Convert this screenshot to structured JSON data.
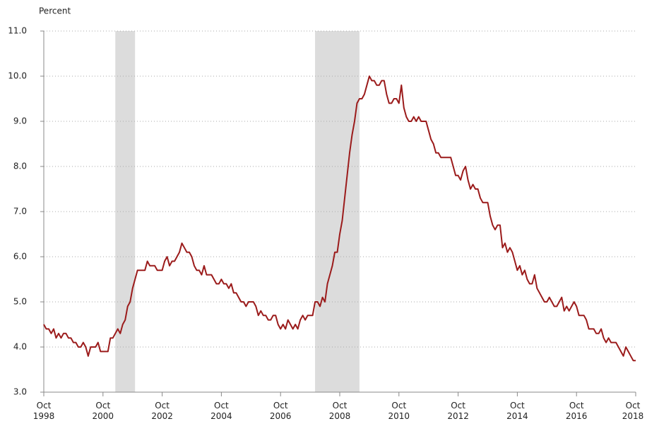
{
  "chart_data": {
    "type": "line",
    "y_label": "Percent",
    "color": "#9b1b1b",
    "shade_color": "#dcdcdc",
    "grid": true,
    "x": [
      "1998-10",
      "1998-11",
      "1998-12",
      "1999-01",
      "1999-02",
      "1999-03",
      "1999-04",
      "1999-05",
      "1999-06",
      "1999-07",
      "1999-08",
      "1999-09",
      "1999-10",
      "1999-11",
      "1999-12",
      "2000-01",
      "2000-02",
      "2000-03",
      "2000-04",
      "2000-05",
      "2000-06",
      "2000-07",
      "2000-08",
      "2000-09",
      "2000-10",
      "2000-11",
      "2000-12",
      "2001-01",
      "2001-02",
      "2001-03",
      "2001-04",
      "2001-05",
      "2001-06",
      "2001-07",
      "2001-08",
      "2001-09",
      "2001-10",
      "2001-11",
      "2001-12",
      "2002-01",
      "2002-02",
      "2002-03",
      "2002-04",
      "2002-05",
      "2002-06",
      "2002-07",
      "2002-08",
      "2002-09",
      "2002-10",
      "2002-11",
      "2002-12",
      "2003-01",
      "2003-02",
      "2003-03",
      "2003-04",
      "2003-05",
      "2003-06",
      "2003-07",
      "2003-08",
      "2003-09",
      "2003-10",
      "2003-11",
      "2003-12",
      "2004-01",
      "2004-02",
      "2004-03",
      "2004-04",
      "2004-05",
      "2004-06",
      "2004-07",
      "2004-08",
      "2004-09",
      "2004-10",
      "2004-11",
      "2004-12",
      "2005-01",
      "2005-02",
      "2005-03",
      "2005-04",
      "2005-05",
      "2005-06",
      "2005-07",
      "2005-08",
      "2005-09",
      "2005-10",
      "2005-11",
      "2005-12",
      "2006-01",
      "2006-02",
      "2006-03",
      "2006-04",
      "2006-05",
      "2006-06",
      "2006-07",
      "2006-08",
      "2006-09",
      "2006-10",
      "2006-11",
      "2006-12",
      "2007-01",
      "2007-02",
      "2007-03",
      "2007-04",
      "2007-05",
      "2007-06",
      "2007-07",
      "2007-08",
      "2007-09",
      "2007-10",
      "2007-11",
      "2007-12",
      "2008-01",
      "2008-02",
      "2008-03",
      "2008-04",
      "2008-05",
      "2008-06",
      "2008-07",
      "2008-08",
      "2008-09",
      "2008-10",
      "2008-11",
      "2008-12",
      "2009-01",
      "2009-02",
      "2009-03",
      "2009-04",
      "2009-05",
      "2009-06",
      "2009-07",
      "2009-08",
      "2009-09",
      "2009-10",
      "2009-11",
      "2009-12",
      "2010-01",
      "2010-02",
      "2010-03",
      "2010-04",
      "2010-05",
      "2010-06",
      "2010-07",
      "2010-08",
      "2010-09",
      "2010-10",
      "2010-11",
      "2010-12",
      "2011-01",
      "2011-02",
      "2011-03",
      "2011-04",
      "2011-05",
      "2011-06",
      "2011-07",
      "2011-08",
      "2011-09",
      "2011-10",
      "2011-11",
      "2011-12",
      "2012-01",
      "2012-02",
      "2012-03",
      "2012-04",
      "2012-05",
      "2012-06",
      "2012-07",
      "2012-08",
      "2012-09",
      "2012-10",
      "2012-11",
      "2012-12",
      "2013-01",
      "2013-02",
      "2013-03",
      "2013-04",
      "2013-05",
      "2013-06",
      "2013-07",
      "2013-08",
      "2013-09",
      "2013-10",
      "2013-11",
      "2013-12",
      "2014-01",
      "2014-02",
      "2014-03",
      "2014-04",
      "2014-05",
      "2014-06",
      "2014-07",
      "2014-08",
      "2014-09",
      "2014-10",
      "2014-11",
      "2014-12",
      "2015-01",
      "2015-02",
      "2015-03",
      "2015-04",
      "2015-05",
      "2015-06",
      "2015-07",
      "2015-08",
      "2015-09",
      "2015-10",
      "2015-11",
      "2015-12",
      "2016-01",
      "2016-02",
      "2016-03",
      "2016-04",
      "2016-05",
      "2016-06",
      "2016-07",
      "2016-08",
      "2016-09",
      "2016-10",
      "2016-11",
      "2016-12",
      "2017-01",
      "2017-02",
      "2017-03",
      "2017-04",
      "2017-05",
      "2017-06",
      "2017-07",
      "2017-08",
      "2017-09",
      "2017-10",
      "2017-11",
      "2017-12",
      "2018-01",
      "2018-02",
      "2018-03",
      "2018-04",
      "2018-05",
      "2018-06",
      "2018-07",
      "2018-08",
      "2018-09",
      "2018-10"
    ],
    "values": [
      4.5,
      4.4,
      4.4,
      4.3,
      4.4,
      4.2,
      4.3,
      4.2,
      4.3,
      4.3,
      4.2,
      4.2,
      4.1,
      4.1,
      4.0,
      4.0,
      4.1,
      4.0,
      3.8,
      4.0,
      4.0,
      4.0,
      4.1,
      3.9,
      3.9,
      3.9,
      3.9,
      4.2,
      4.2,
      4.3,
      4.4,
      4.3,
      4.5,
      4.6,
      4.9,
      5.0,
      5.3,
      5.5,
      5.7,
      5.7,
      5.7,
      5.7,
      5.9,
      5.8,
      5.8,
      5.8,
      5.7,
      5.7,
      5.7,
      5.9,
      6.0,
      5.8,
      5.9,
      5.9,
      6.0,
      6.1,
      6.3,
      6.2,
      6.1,
      6.1,
      6.0,
      5.8,
      5.7,
      5.7,
      5.6,
      5.8,
      5.6,
      5.6,
      5.6,
      5.5,
      5.4,
      5.4,
      5.5,
      5.4,
      5.4,
      5.3,
      5.4,
      5.2,
      5.2,
      5.1,
      5.0,
      5.0,
      4.9,
      5.0,
      5.0,
      5.0,
      4.9,
      4.7,
      4.8,
      4.7,
      4.7,
      4.6,
      4.6,
      4.7,
      4.7,
      4.5,
      4.4,
      4.5,
      4.4,
      4.6,
      4.5,
      4.4,
      4.5,
      4.4,
      4.6,
      4.7,
      4.6,
      4.7,
      4.7,
      4.7,
      5.0,
      5.0,
      4.9,
      5.1,
      5.0,
      5.4,
      5.6,
      5.8,
      6.1,
      6.1,
      6.5,
      6.8,
      7.3,
      7.8,
      8.3,
      8.7,
      9.0,
      9.4,
      9.5,
      9.5,
      9.6,
      9.8,
      10.0,
      9.9,
      9.9,
      9.8,
      9.8,
      9.9,
      9.9,
      9.6,
      9.4,
      9.4,
      9.5,
      9.5,
      9.4,
      9.8,
      9.3,
      9.1,
      9.0,
      9.0,
      9.1,
      9.0,
      9.1,
      9.0,
      9.0,
      9.0,
      8.8,
      8.6,
      8.5,
      8.3,
      8.3,
      8.2,
      8.2,
      8.2,
      8.2,
      8.2,
      8.0,
      7.8,
      7.8,
      7.7,
      7.9,
      8.0,
      7.7,
      7.5,
      7.6,
      7.5,
      7.5,
      7.3,
      7.2,
      7.2,
      7.2,
      6.9,
      6.7,
      6.6,
      6.7,
      6.7,
      6.2,
      6.3,
      6.1,
      6.2,
      6.1,
      5.9,
      5.7,
      5.8,
      5.6,
      5.7,
      5.5,
      5.4,
      5.4,
      5.6,
      5.3,
      5.2,
      5.1,
      5.0,
      5.0,
      5.1,
      5.0,
      4.9,
      4.9,
      5.0,
      5.1,
      4.8,
      4.9,
      4.8,
      4.9,
      5.0,
      4.9,
      4.7,
      4.7,
      4.7,
      4.6,
      4.4,
      4.4,
      4.4,
      4.3,
      4.3,
      4.4,
      4.2,
      4.1,
      4.2,
      4.1,
      4.1,
      4.1,
      4.0,
      3.9,
      3.8,
      4.0,
      3.9,
      3.8,
      3.7,
      3.7
    ],
    "shading": [
      {
        "start": "2001-03",
        "end": "2001-11"
      },
      {
        "start": "2007-12",
        "end": "2009-06"
      }
    ],
    "xlim": [
      "1998-10",
      "2018-10"
    ],
    "xticks": [
      {
        "value": "1998-10",
        "label": "Oct 1998"
      },
      {
        "value": "2000-10",
        "label": "Oct 2000"
      },
      {
        "value": "2002-10",
        "label": "Oct 2002"
      },
      {
        "value": "2004-10",
        "label": "Oct 2004"
      },
      {
        "value": "2006-10",
        "label": "Oct 2006"
      },
      {
        "value": "2008-10",
        "label": "Oct 2008"
      },
      {
        "value": "2010-10",
        "label": "Oct 2010"
      },
      {
        "value": "2012-10",
        "label": "Oct 2012"
      },
      {
        "value": "2014-10",
        "label": "Oct 2014"
      },
      {
        "value": "2016-10",
        "label": "Oct 2016"
      },
      {
        "value": "2018-10",
        "label": "Oct 2018"
      }
    ],
    "ylim": [
      3,
      11
    ],
    "yticks": [
      {
        "value": 3,
        "label": "3.0"
      },
      {
        "value": 4,
        "label": "4.0"
      },
      {
        "value": 5,
        "label": "5.0"
      },
      {
        "value": 6,
        "label": "6.0"
      },
      {
        "value": 7,
        "label": "7.0"
      },
      {
        "value": 8,
        "label": "8.0"
      },
      {
        "value": 9,
        "label": "9.0"
      },
      {
        "value": 10,
        "label": "10.0"
      },
      {
        "value": 11,
        "label": "11.0"
      }
    ]
  }
}
